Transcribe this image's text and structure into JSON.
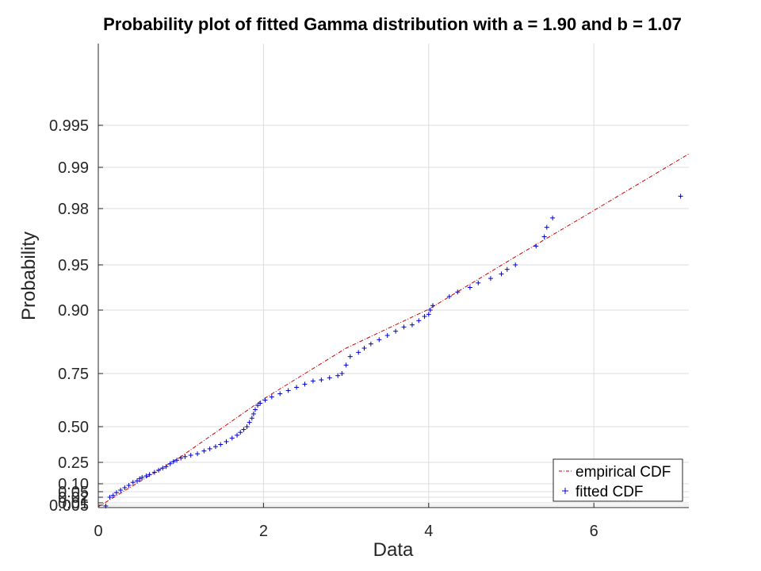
{
  "chart_data": {
    "type": "scatter",
    "title": "Probability plot of fitted Gamma distribution with a = 1.90 and b = 1.07",
    "xlabel": "Data",
    "ylabel": "Probability",
    "xlim": [
      0,
      7.15
    ],
    "x_ticks": [
      0,
      2,
      4,
      6
    ],
    "y_scale": "gamma-probability",
    "y_ticks": [
      {
        "p": 0.005,
        "label": "0.005"
      },
      {
        "p": 0.01,
        "label": "0.01"
      },
      {
        "p": 0.02,
        "label": "0.02"
      },
      {
        "p": 0.05,
        "label": "0.05"
      },
      {
        "p": 0.1,
        "label": "0.10"
      },
      {
        "p": 0.25,
        "label": "0.25"
      },
      {
        "p": 0.5,
        "label": "0.50"
      },
      {
        "p": 0.75,
        "label": "0.75"
      },
      {
        "p": 0.9,
        "label": "0.90"
      },
      {
        "p": 0.95,
        "label": "0.95"
      },
      {
        "p": 0.98,
        "label": "0.98"
      },
      {
        "p": 0.99,
        "label": "0.99"
      },
      {
        "p": 0.995,
        "label": "0.995"
      }
    ],
    "grid": true,
    "legend_position": "bottom-right",
    "series": [
      {
        "name": "empirical CDF",
        "style": "dash-dot line",
        "color": "#cc0000",
        "points": [
          [
            0,
            0.001
          ],
          [
            1,
            0.29
          ],
          [
            2,
            0.63
          ],
          [
            3,
            0.81
          ],
          [
            4,
            0.901
          ],
          [
            5,
            0.953
          ],
          [
            6,
            0.979
          ],
          [
            7.15,
            0.9916
          ]
        ]
      },
      {
        "name": "fitted CDF",
        "style": "plus markers",
        "color": "#0000cc",
        "points": [
          [
            0.09,
            0.003
          ],
          [
            0.14,
            0.02
          ],
          [
            0.18,
            0.03
          ],
          [
            0.22,
            0.045
          ],
          [
            0.27,
            0.06
          ],
          [
            0.32,
            0.075
          ],
          [
            0.37,
            0.09
          ],
          [
            0.42,
            0.11
          ],
          [
            0.47,
            0.12
          ],
          [
            0.5,
            0.135
          ],
          [
            0.53,
            0.145
          ],
          [
            0.58,
            0.155
          ],
          [
            0.62,
            0.165
          ],
          [
            0.68,
            0.18
          ],
          [
            0.73,
            0.195
          ],
          [
            0.78,
            0.21
          ],
          [
            0.82,
            0.22
          ],
          [
            0.87,
            0.24
          ],
          [
            0.91,
            0.255
          ],
          [
            0.95,
            0.265
          ],
          [
            1.0,
            0.28
          ],
          [
            1.05,
            0.29
          ],
          [
            1.12,
            0.3
          ],
          [
            1.2,
            0.31
          ],
          [
            1.28,
            0.33
          ],
          [
            1.35,
            0.345
          ],
          [
            1.42,
            0.36
          ],
          [
            1.48,
            0.375
          ],
          [
            1.55,
            0.395
          ],
          [
            1.62,
            0.42
          ],
          [
            1.68,
            0.44
          ],
          [
            1.72,
            0.46
          ],
          [
            1.76,
            0.48
          ],
          [
            1.8,
            0.5
          ],
          [
            1.83,
            0.52
          ],
          [
            1.86,
            0.54
          ],
          [
            1.88,
            0.56
          ],
          [
            1.9,
            0.58
          ],
          [
            1.93,
            0.6
          ],
          [
            1.96,
            0.61
          ],
          [
            2.02,
            0.625
          ],
          [
            2.1,
            0.64
          ],
          [
            2.2,
            0.655
          ],
          [
            2.3,
            0.67
          ],
          [
            2.4,
            0.685
          ],
          [
            2.5,
            0.7
          ],
          [
            2.6,
            0.715
          ],
          [
            2.7,
            0.72
          ],
          [
            2.8,
            0.73
          ],
          [
            2.9,
            0.74
          ],
          [
            2.95,
            0.75
          ],
          [
            3.0,
            0.77
          ],
          [
            3.05,
            0.79
          ],
          [
            3.15,
            0.8
          ],
          [
            3.22,
            0.81
          ],
          [
            3.3,
            0.82
          ],
          [
            3.4,
            0.83
          ],
          [
            3.5,
            0.84
          ],
          [
            3.6,
            0.85
          ],
          [
            3.7,
            0.86
          ],
          [
            3.8,
            0.865
          ],
          [
            3.88,
            0.875
          ],
          [
            3.95,
            0.885
          ],
          [
            4.0,
            0.89
          ],
          [
            4.02,
            0.9
          ],
          [
            4.05,
            0.905
          ],
          [
            4.25,
            0.915
          ],
          [
            4.35,
            0.92
          ],
          [
            4.5,
            0.925
          ],
          [
            4.6,
            0.93
          ],
          [
            4.75,
            0.935
          ],
          [
            4.88,
            0.94
          ],
          [
            4.95,
            0.945
          ],
          [
            5.05,
            0.95
          ],
          [
            5.3,
            0.96
          ],
          [
            5.4,
            0.965
          ],
          [
            5.43,
            0.97
          ],
          [
            5.5,
            0.975
          ],
          [
            7.05,
            0.983
          ]
        ]
      }
    ]
  }
}
